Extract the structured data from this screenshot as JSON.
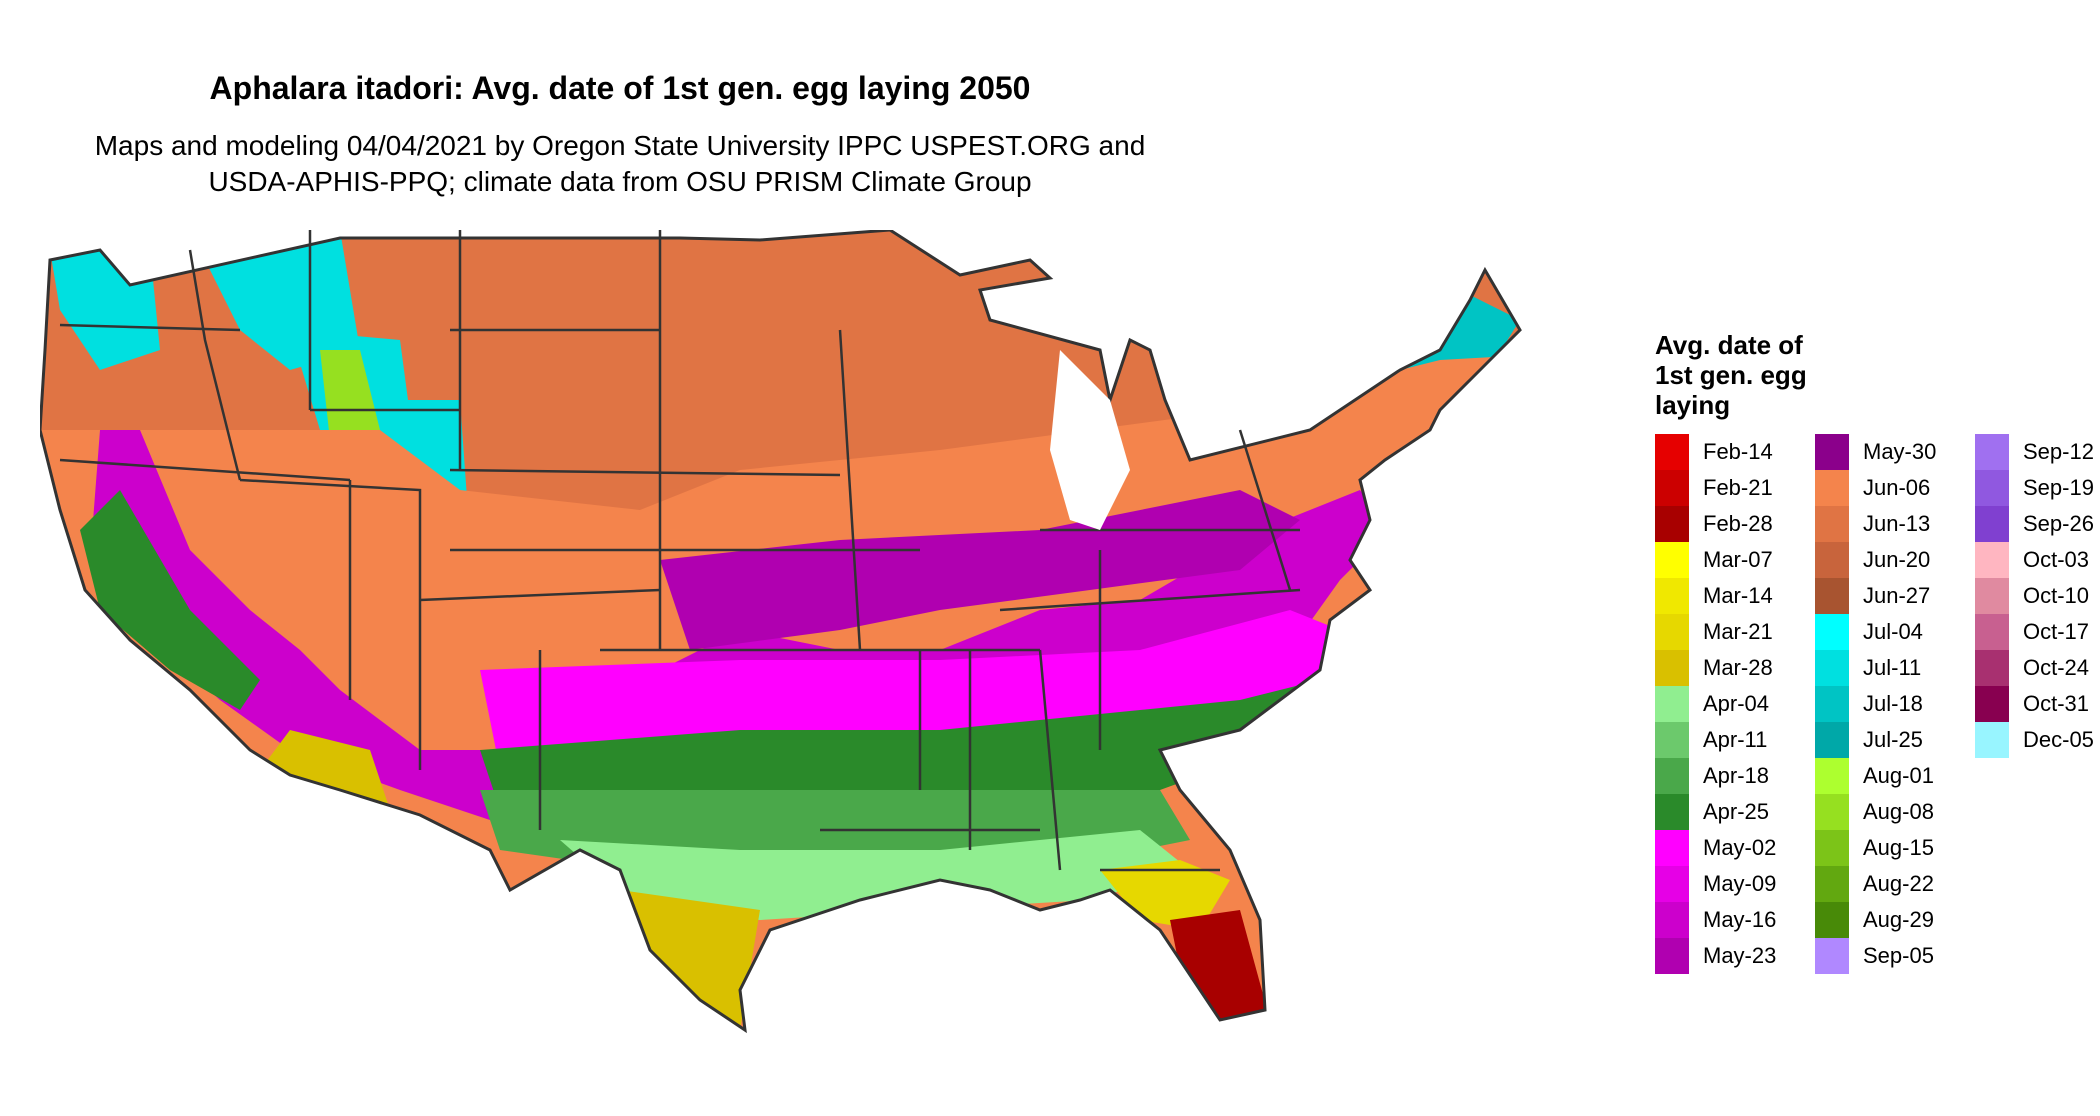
{
  "title": "Aphalara itadori: Avg. date of 1st gen. egg laying 2050",
  "subtitle_line1": "Maps and modeling 04/04/2021 by Oregon State University IPPC USPEST.ORG and",
  "subtitle_line2": "USDA-APHIS-PPQ; climate data from OSU PRISM Climate Group",
  "legend": {
    "title_line1": "Avg. date of",
    "title_line2": "1st gen. egg",
    "title_line3": "laying",
    "columns": [
      [
        {
          "label": "Feb-14",
          "color": "#e60000"
        },
        {
          "label": "Feb-21",
          "color": "#cc0000"
        },
        {
          "label": "Feb-28",
          "color": "#a80000"
        },
        {
          "label": "Mar-07",
          "color": "#ffff00"
        },
        {
          "label": "Mar-14",
          "color": "#f0e800"
        },
        {
          "label": "Mar-21",
          "color": "#e6d800"
        },
        {
          "label": "Mar-28",
          "color": "#d9c000"
        },
        {
          "label": "Apr-04",
          "color": "#90ee90"
        },
        {
          "label": "Apr-11",
          "color": "#6cc96c"
        },
        {
          "label": "Apr-18",
          "color": "#4aa84a"
        },
        {
          "label": "Apr-25",
          "color": "#2a8a2a"
        },
        {
          "label": "May-02",
          "color": "#ff00ff"
        },
        {
          "label": "May-09",
          "color": "#e600e6"
        },
        {
          "label": "May-16",
          "color": "#cc00cc"
        },
        {
          "label": "May-23",
          "color": "#b000b0"
        }
      ],
      [
        {
          "label": "May-30",
          "color": "#8b008b"
        },
        {
          "label": "Jun-06",
          "color": "#f4844c"
        },
        {
          "label": "Jun-13",
          "color": "#e07444"
        },
        {
          "label": "Jun-20",
          "color": "#c8643c"
        },
        {
          "label": "Jun-27",
          "color": "#a85430"
        },
        {
          "label": "Jul-04",
          "color": "#00ffff"
        },
        {
          "label": "Jul-11",
          "color": "#00e0e0"
        },
        {
          "label": "Jul-18",
          "color": "#00c4c4"
        },
        {
          "label": "Jul-25",
          "color": "#00a8a8"
        },
        {
          "label": "Aug-01",
          "color": "#adff2f"
        },
        {
          "label": "Aug-08",
          "color": "#96e020"
        },
        {
          "label": "Aug-15",
          "color": "#7cc418"
        },
        {
          "label": "Aug-22",
          "color": "#62a810"
        },
        {
          "label": "Aug-29",
          "color": "#488a08"
        },
        {
          "label": "Sep-05",
          "color": "#b088ff"
        }
      ],
      [
        {
          "label": "Sep-12",
          "color": "#a070f0"
        },
        {
          "label": "Sep-19",
          "color": "#9058e0"
        },
        {
          "label": "Sep-26",
          "color": "#8040d0"
        },
        {
          "label": "Oct-03",
          "color": "#ffb6c1"
        },
        {
          "label": "Oct-10",
          "color": "#e08aa0"
        },
        {
          "label": "Oct-17",
          "color": "#c86090"
        },
        {
          "label": "Oct-24",
          "color": "#a83070"
        },
        {
          "label": "Oct-31",
          "color": "#880050"
        },
        {
          "label": "Dec-05",
          "color": "#98f5ff"
        }
      ]
    ]
  }
}
